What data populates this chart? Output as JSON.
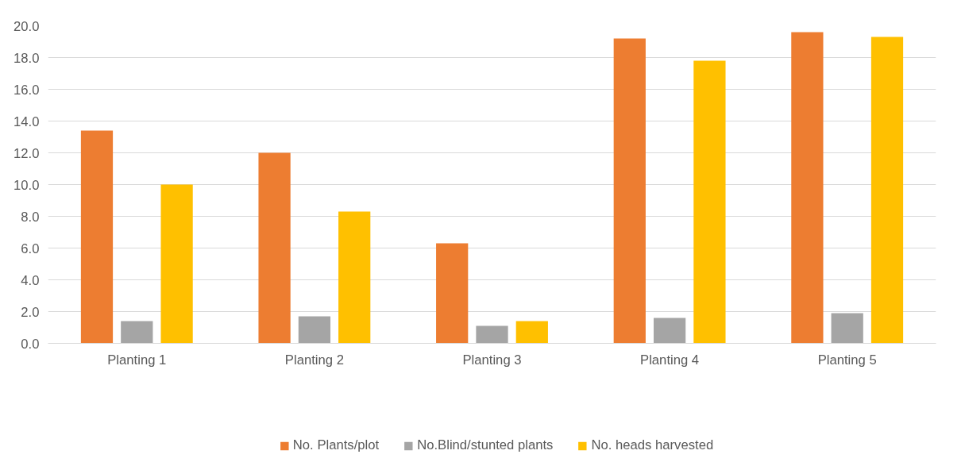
{
  "chart_data": {
    "type": "bar",
    "categories": [
      "Planting 1",
      "Planting 2",
      "Planting 3",
      "Planting 4",
      "Planting 5"
    ],
    "series": [
      {
        "name": "No. Plants/plot",
        "color": "#ed7d31",
        "values": [
          13.4,
          12.0,
          6.3,
          19.2,
          19.6
        ]
      },
      {
        "name": "No.Blind/stunted plants",
        "color": "#a5a5a5",
        "values": [
          1.4,
          1.7,
          1.1,
          1.6,
          1.9
        ]
      },
      {
        "name": "No. heads harvested",
        "color": "#ffc000",
        "values": [
          10.0,
          8.3,
          1.4,
          17.8,
          19.3
        ]
      }
    ],
    "ylim": [
      0,
      20
    ],
    "yticks": [
      {
        "value": 0,
        "label": "0.0"
      },
      {
        "value": 2,
        "label": "2.0"
      },
      {
        "value": 4,
        "label": "4.0"
      },
      {
        "value": 6,
        "label": "6.0"
      },
      {
        "value": 8,
        "label": "8.0"
      },
      {
        "value": 10,
        "label": "10.0"
      },
      {
        "value": 12,
        "label": "12.0"
      },
      {
        "value": 14,
        "label": "14.0"
      },
      {
        "value": 16,
        "label": "16.0"
      },
      {
        "value": 18,
        "label": "18.0"
      },
      {
        "value": 20,
        "label": "20.0"
      }
    ],
    "grid": "y",
    "legend": "bottom"
  }
}
